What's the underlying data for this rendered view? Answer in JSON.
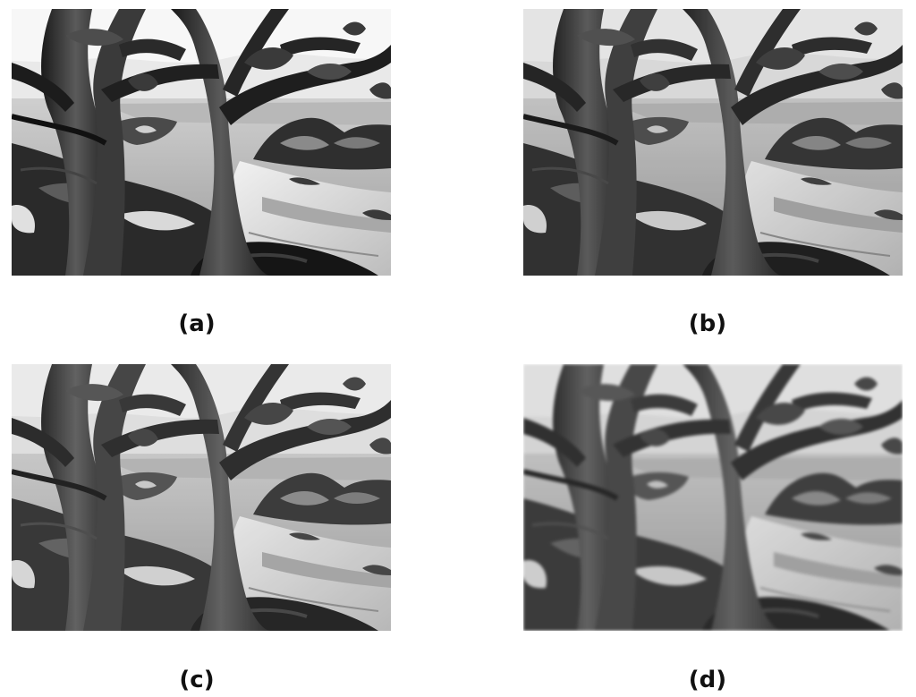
{
  "figure": {
    "panels": [
      {
        "id": "a",
        "caption": "(a)",
        "image_semantic": "painting-tree-landscape-grayscale"
      },
      {
        "id": "b",
        "caption": "(b)",
        "image_semantic": "painting-tree-landscape-grayscale"
      },
      {
        "id": "c",
        "caption": "(c)",
        "image_semantic": "painting-tree-landscape-grayscale"
      },
      {
        "id": "d",
        "caption": "(d)",
        "image_semantic": "painting-tree-landscape-grayscale"
      }
    ]
  }
}
